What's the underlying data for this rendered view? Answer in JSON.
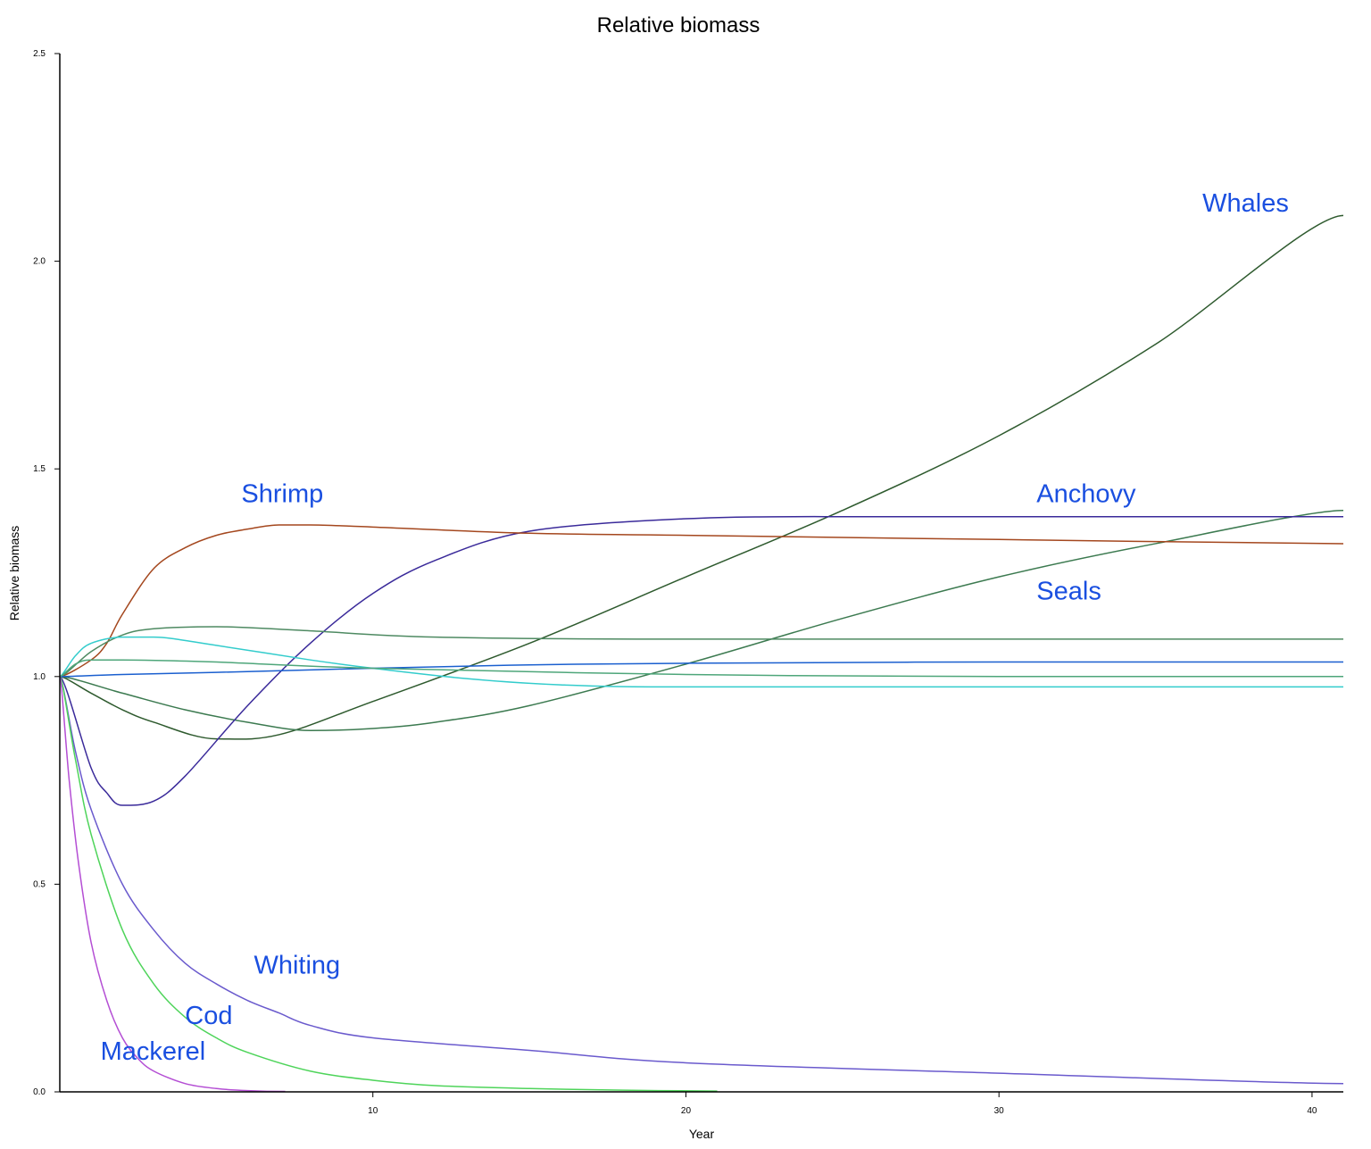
{
  "chart_data": {
    "type": "line",
    "title": "Relative biomass",
    "xlabel": "Year",
    "ylabel": "Relative biomass",
    "xlim": [
      0,
      41
    ],
    "ylim": [
      0,
      2.5
    ],
    "xticks": [
      10,
      20,
      30,
      40
    ],
    "yticks": [
      0.0,
      0.5,
      1.0,
      1.5,
      2.0,
      2.5
    ],
    "ytick_labels": [
      "0.0",
      "0.5",
      "1.0",
      "1.5",
      "2.0",
      "2.5"
    ],
    "grid": false,
    "series": [
      {
        "label": "Whales",
        "color": "#2e5a2e",
        "x": [
          0,
          1,
          2,
          3,
          5,
          7,
          10,
          15,
          20,
          25,
          30,
          35,
          41
        ],
        "y": [
          1.0,
          0.96,
          0.92,
          0.89,
          0.85,
          0.86,
          0.94,
          1.08,
          1.24,
          1.4,
          1.58,
          1.8,
          2.11
        ]
      },
      {
        "label": "Seals",
        "color": "#3c7a50",
        "x": [
          0,
          2,
          4,
          6,
          8,
          10,
          12,
          15,
          20,
          25,
          30,
          35,
          41
        ],
        "y": [
          1.0,
          0.96,
          0.92,
          0.89,
          0.87,
          0.875,
          0.89,
          0.93,
          1.03,
          1.14,
          1.24,
          1.32,
          1.4
        ]
      },
      {
        "label": "Anchovy",
        "color": "#3a2a9a",
        "x": [
          0,
          1,
          1.5,
          2,
          3,
          4,
          6,
          8,
          10,
          12,
          15,
          20,
          25,
          30,
          41
        ],
        "y": [
          1.0,
          0.78,
          0.72,
          0.69,
          0.7,
          0.76,
          0.93,
          1.08,
          1.2,
          1.28,
          1.35,
          1.38,
          1.385,
          1.385,
          1.385
        ]
      },
      {
        "label": "Shrimp",
        "color": "#a4471e",
        "x": [
          0,
          1,
          1.5,
          2,
          3,
          4,
          5,
          6,
          7,
          8,
          10,
          15,
          20,
          30,
          41
        ],
        "y": [
          1.0,
          1.04,
          1.08,
          1.15,
          1.26,
          1.31,
          1.34,
          1.355,
          1.365,
          1.365,
          1.36,
          1.345,
          1.34,
          1.33,
          1.32
        ]
      },
      {
        "label": "",
        "color": "#4e8a62",
        "x": [
          0,
          1,
          2,
          3,
          5,
          8,
          12,
          20,
          30,
          41
        ],
        "y": [
          1.0,
          1.06,
          1.1,
          1.115,
          1.12,
          1.11,
          1.095,
          1.09,
          1.09,
          1.09
        ]
      },
      {
        "label": "",
        "color": "#33cccc",
        "x": [
          0,
          0.5,
          1,
          2,
          3,
          5,
          8,
          10,
          13,
          16,
          20,
          30,
          41
        ],
        "y": [
          1.0,
          1.05,
          1.08,
          1.095,
          1.095,
          1.075,
          1.04,
          1.02,
          0.995,
          0.98,
          0.975,
          0.975,
          0.975
        ]
      },
      {
        "label": "",
        "color": "#1a5fcf",
        "x": [
          0,
          2,
          5,
          10,
          15,
          20,
          30,
          41
        ],
        "y": [
          1.0,
          1.005,
          1.01,
          1.02,
          1.028,
          1.032,
          1.035,
          1.035
        ]
      },
      {
        "label": "",
        "color": "#4ea67a",
        "x": [
          0,
          0.5,
          1,
          2,
          5,
          10,
          20,
          30,
          41
        ],
        "y": [
          1.0,
          1.03,
          1.04,
          1.04,
          1.035,
          1.02,
          1.005,
          1.0,
          1.0
        ]
      },
      {
        "label": "Whiting",
        "color": "#6a5acd",
        "x": [
          0,
          0.5,
          1,
          2,
          3,
          4,
          5,
          6,
          7,
          8,
          10,
          15,
          20,
          30,
          41
        ],
        "y": [
          1.0,
          0.82,
          0.68,
          0.5,
          0.39,
          0.31,
          0.26,
          0.22,
          0.19,
          0.16,
          0.13,
          0.1,
          0.07,
          0.045,
          0.02
        ]
      },
      {
        "label": "Cod",
        "color": "#4ed45a",
        "x": [
          0,
          0.5,
          1,
          2,
          3,
          4,
          5,
          6,
          8,
          10,
          12,
          15,
          18,
          21
        ],
        "y": [
          1.0,
          0.8,
          0.62,
          0.39,
          0.26,
          0.18,
          0.13,
          0.095,
          0.05,
          0.028,
          0.015,
          0.008,
          0.004,
          0.002
        ]
      },
      {
        "label": "Mackerel",
        "color": "#b44ed4",
        "x": [
          0,
          0.3,
          0.6,
          1,
          1.5,
          2,
          2.5,
          3,
          4,
          5,
          6,
          7.2
        ],
        "y": [
          1.0,
          0.75,
          0.55,
          0.36,
          0.22,
          0.13,
          0.08,
          0.05,
          0.02,
          0.008,
          0.003,
          0.001
        ]
      }
    ],
    "annotations": [
      {
        "text": "Whales",
        "x": 36.5,
        "y": 2.12
      },
      {
        "text": "Anchovy",
        "x": 31.2,
        "y": 1.42
      },
      {
        "text": "Shrimp",
        "x": 5.8,
        "y": 1.42
      },
      {
        "text": "Seals",
        "x": 31.2,
        "y": 1.185
      },
      {
        "text": "Whiting",
        "x": 6.2,
        "y": 0.285
      },
      {
        "text": "Cod",
        "x": 4.0,
        "y": 0.163
      },
      {
        "text": "Mackerel",
        "x": 1.3,
        "y": 0.077
      }
    ]
  }
}
